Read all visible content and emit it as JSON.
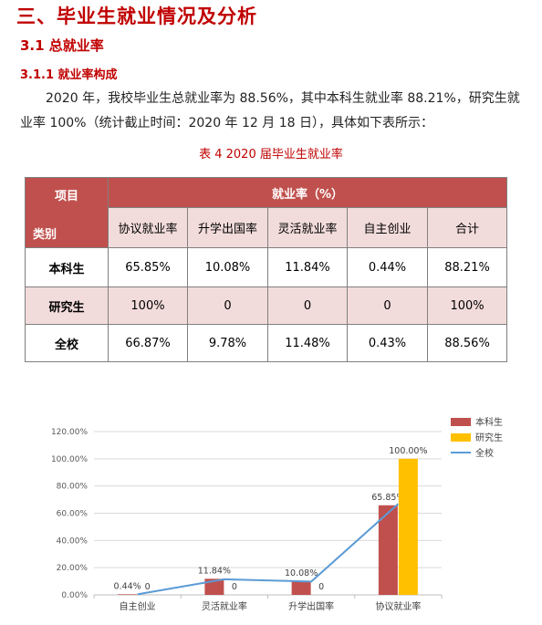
{
  "heading": "三、毕业生就业情况及分析",
  "section": "3.1 总就业率",
  "subsection": "3.1.1 就业率构成",
  "paragraph": "2020 年，我校毕业生总就业率为 88.56%，其中本科生就业率 88.21%，研究生就业率 100%（统计截止时间：2020 年 12 月 18 日），具体如下表所示：",
  "caption": "表 4   2020 届毕业生就业率",
  "table": {
    "corner_top": "项目",
    "corner_bottom": "类别",
    "group_header": "就业率（%）",
    "columns": [
      "协议就业率",
      "升学出国率",
      "灵活就业率",
      "自主创业",
      "合计"
    ],
    "rows": [
      {
        "label": "本科生",
        "values": [
          "65.85%",
          "10.08%",
          "11.84%",
          "0.44%",
          "88.21%"
        ]
      },
      {
        "label": "研究生",
        "values": [
          "100%",
          "0",
          "0",
          "0",
          "100%"
        ]
      },
      {
        "label": "全校",
        "values": [
          "66.87%",
          "9.78%",
          "11.48%",
          "0.43%",
          "88.56%"
        ]
      }
    ]
  },
  "chart_data": {
    "type": "bar",
    "categories": [
      "自主创业",
      "灵活就业率",
      "升学出国率",
      "协议就业率"
    ],
    "series": [
      {
        "name": "本科生",
        "kind": "bar",
        "color": "#c0504d",
        "values": [
          0.44,
          11.84,
          10.08,
          65.85
        ],
        "labels": [
          "0.44%",
          "11.84%",
          "10.08%",
          "65.85%"
        ]
      },
      {
        "name": "研究生",
        "kind": "bar",
        "color": "#ffc000",
        "values": [
          0,
          0,
          0,
          100
        ],
        "labels": [
          "0",
          "0",
          "0",
          "100.00%"
        ]
      },
      {
        "name": "全校",
        "kind": "line",
        "color": "#5b9bd5",
        "values": [
          0.43,
          11.48,
          9.78,
          66.87
        ]
      }
    ],
    "y_ticks": [
      "0.00%",
      "20.00%",
      "40.00%",
      "60.00%",
      "80.00%",
      "100.00%",
      "120.00%"
    ],
    "ylim": [
      0,
      120
    ],
    "grid": true,
    "legend": "top-right"
  }
}
